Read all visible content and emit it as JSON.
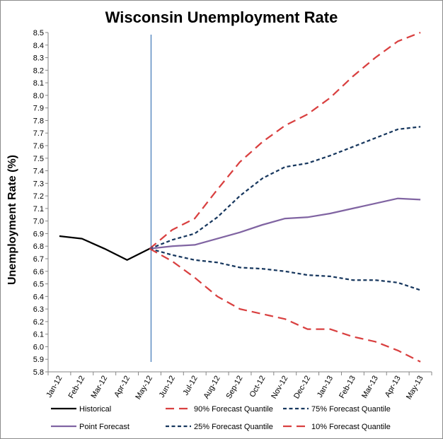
{
  "chart_data": {
    "type": "line",
    "title": "Wisconsin Unemployment Rate",
    "xlabel": "",
    "ylabel": "Unemployment Rate (%)",
    "ylim": [
      5.8,
      8.5
    ],
    "ytick_step": 0.1,
    "yticks": [
      "5.8",
      "5.9",
      "6.0",
      "6.1",
      "6.2",
      "6.3",
      "6.4",
      "6.5",
      "6.6",
      "6.7",
      "6.8",
      "6.9",
      "7.0",
      "7.1",
      "7.2",
      "7.3",
      "7.4",
      "7.5",
      "7.6",
      "7.7",
      "7.8",
      "7.9",
      "8.0",
      "8.1",
      "8.2",
      "8.3",
      "8.4",
      "8.5"
    ],
    "categories": [
      "Jan-12",
      "Feb-12",
      "Mar-12",
      "Apr-12",
      "May-12",
      "Jun-12",
      "Jul-12",
      "Aug-12",
      "Sep-12",
      "Oct-12",
      "Nov-12",
      "Dec-12",
      "Jan-13",
      "Feb-13",
      "Mar-13",
      "Apr-13",
      "May-13"
    ],
    "vertical_marker_category": "May-12",
    "vertical_marker_color": "#4a7ebb",
    "series": [
      {
        "name": "Historical",
        "color": "#000000",
        "dash": "solid",
        "values": [
          6.88,
          6.86,
          6.78,
          6.69,
          6.78,
          null,
          null,
          null,
          null,
          null,
          null,
          null,
          null,
          null,
          null,
          null,
          null
        ]
      },
      {
        "name": "90% Forecast Quantile",
        "color": "#d94040",
        "dash": "long",
        "values": [
          null,
          null,
          null,
          null,
          6.78,
          6.93,
          7.02,
          7.25,
          7.47,
          7.63,
          7.76,
          7.85,
          7.98,
          8.15,
          8.3,
          8.43,
          8.5
        ]
      },
      {
        "name": "75% Forecast Quantile",
        "color": "#17375e",
        "dash": "short",
        "values": [
          null,
          null,
          null,
          null,
          6.78,
          6.85,
          6.9,
          7.03,
          7.2,
          7.34,
          7.43,
          7.46,
          7.52,
          7.59,
          7.66,
          7.73,
          7.75
        ]
      },
      {
        "name": "Point Forecast",
        "color": "#8064a2",
        "dash": "solid",
        "values": [
          null,
          null,
          null,
          null,
          6.78,
          6.8,
          6.81,
          6.86,
          6.91,
          6.97,
          7.02,
          7.03,
          7.06,
          7.1,
          7.14,
          7.18,
          7.17
        ]
      },
      {
        "name": "25% Forecast Quantile",
        "color": "#17375e",
        "dash": "short",
        "values": [
          null,
          null,
          null,
          null,
          6.78,
          6.73,
          6.69,
          6.67,
          6.63,
          6.62,
          6.6,
          6.57,
          6.56,
          6.53,
          6.53,
          6.51,
          6.45
        ]
      },
      {
        "name": "10% Forecast Quantile",
        "color": "#d94040",
        "dash": "long",
        "values": [
          null,
          null,
          null,
          null,
          6.78,
          6.68,
          6.55,
          6.4,
          6.3,
          6.26,
          6.22,
          6.14,
          6.14,
          6.08,
          6.04,
          5.97,
          5.88
        ]
      }
    ],
    "legend": {
      "placement": "bottom",
      "row1": [
        "Historical",
        "90% Forecast Quantile",
        "75% Forecast Quantile"
      ],
      "row2": [
        "Point Forecast",
        "25% Forecast Quantile",
        "10% Forecast Quantile"
      ]
    }
  }
}
